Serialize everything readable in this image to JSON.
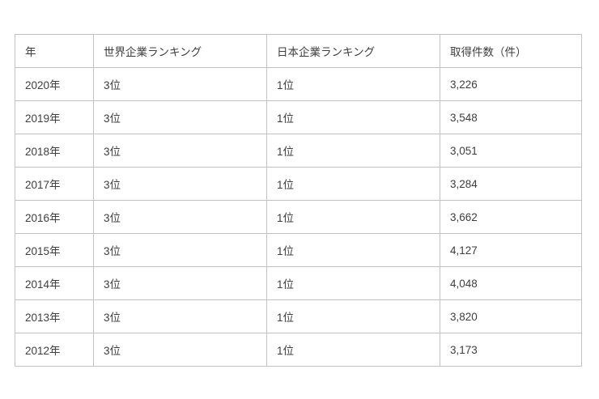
{
  "colors": {
    "background": "#ffffff",
    "border": "#c2c2c2",
    "text": "#3e3e3e"
  },
  "table": {
    "columns": [
      "年",
      "世界企業ランキング",
      "日本企業ランキング",
      "取得件数（件）"
    ],
    "rows": [
      [
        "2020年",
        "3位",
        "1位",
        "3,226"
      ],
      [
        "2019年",
        "3位",
        "1位",
        "3,548"
      ],
      [
        "2018年",
        "3位",
        "1位",
        "3,051"
      ],
      [
        "2017年",
        "3位",
        "1位",
        "3,284"
      ],
      [
        "2016年",
        "3位",
        "1位",
        "3,662"
      ],
      [
        "2015年",
        "3位",
        "1位",
        "4,127"
      ],
      [
        "2014年",
        "3位",
        "1位",
        "4,048"
      ],
      [
        "2013年",
        "3位",
        "1位",
        "3,820"
      ],
      [
        "2012年",
        "3位",
        "1位",
        "3,173"
      ]
    ]
  },
  "chart_data": {
    "type": "table",
    "title": "",
    "columns": [
      "年",
      "世界企業ランキング",
      "日本企業ランキング",
      "取得件数（件）"
    ],
    "categories": [
      "2020年",
      "2019年",
      "2018年",
      "2017年",
      "2016年",
      "2015年",
      "2014年",
      "2013年",
      "2012年"
    ],
    "series": [
      {
        "name": "世界企業ランキング",
        "values": [
          "3位",
          "3位",
          "3位",
          "3位",
          "3位",
          "3位",
          "3位",
          "3位",
          "3位"
        ]
      },
      {
        "name": "日本企業ランキング",
        "values": [
          "1位",
          "1位",
          "1位",
          "1位",
          "1位",
          "1位",
          "1位",
          "1位",
          "1位"
        ]
      },
      {
        "name": "取得件数（件）",
        "values": [
          3226,
          3548,
          3051,
          3284,
          3662,
          4127,
          4048,
          3820,
          3173
        ]
      }
    ]
  }
}
